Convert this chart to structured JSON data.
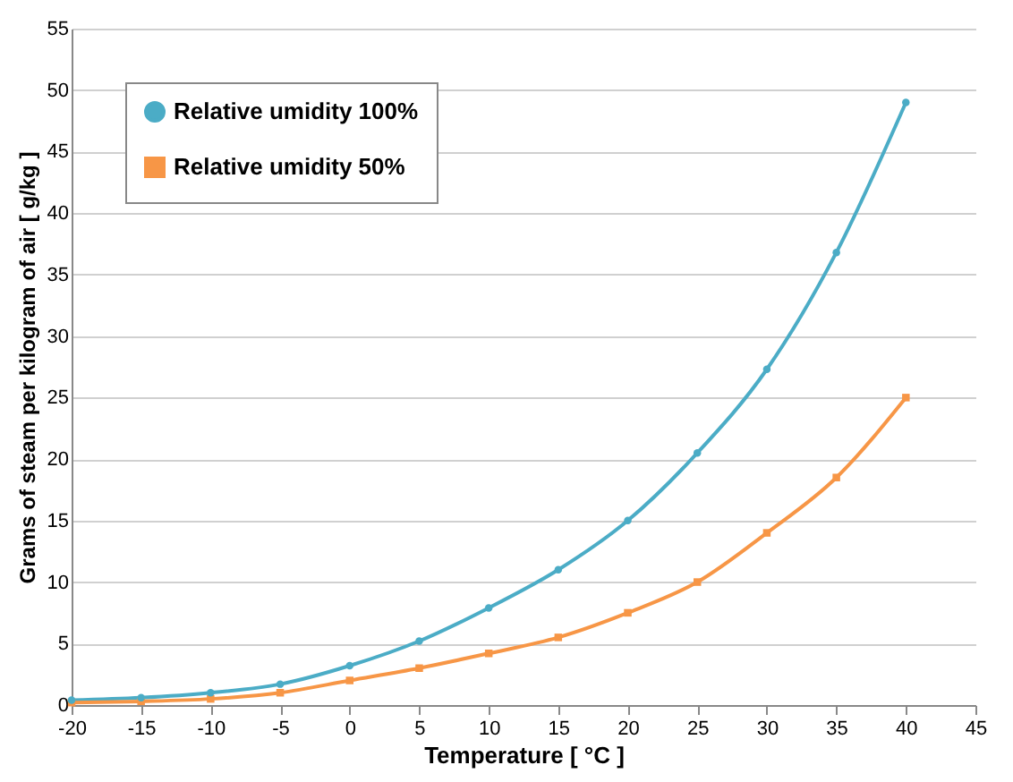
{
  "chart_data": {
    "type": "line",
    "xlabel": "Temperature [ °C ]",
    "ylabel": "Grams of steam per kilogram of air [ g/kg ]",
    "x": [
      -20,
      -15,
      -10,
      -5,
      0,
      5,
      10,
      15,
      20,
      25,
      30,
      35,
      40
    ],
    "series": [
      {
        "name": "Relative umidity 100%",
        "color": "#4bacc6",
        "marker": "circle",
        "values": [
          0.4,
          0.6,
          1.0,
          1.7,
          3.2,
          5.2,
          7.9,
          11,
          15,
          20.5,
          27.3,
          36.8,
          49
        ]
      },
      {
        "name": "Relative umidity 50%",
        "color": "#f79646",
        "marker": "square",
        "values": [
          0.2,
          0.3,
          0.5,
          1.0,
          2.0,
          3.0,
          4.2,
          5.5,
          7.5,
          10,
          14,
          18.5,
          25
        ]
      }
    ],
    "xlim": [
      -20,
      45
    ],
    "xticks": [
      -20,
      -15,
      -10,
      -5,
      0,
      5,
      10,
      15,
      20,
      25,
      30,
      35,
      40,
      45
    ],
    "ylim": [
      0,
      55
    ],
    "yticks": [
      0,
      5,
      10,
      15,
      20,
      25,
      30,
      35,
      40,
      45,
      50,
      55
    ],
    "grid": "y",
    "legend": "top left",
    "line_style": "solid"
  }
}
